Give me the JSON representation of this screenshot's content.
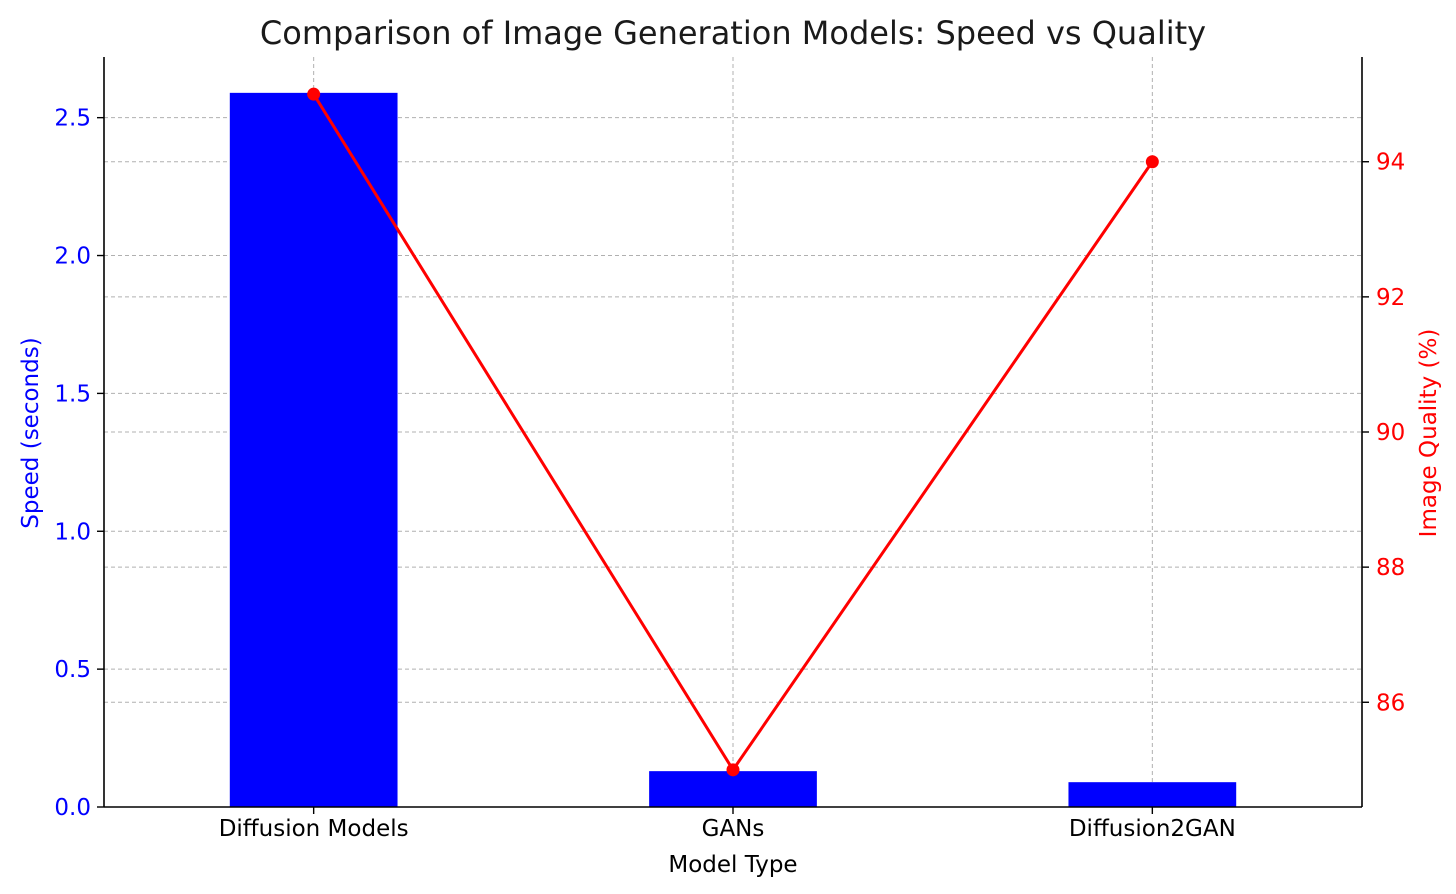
{
  "chart_data": {
    "type": "bar",
    "title": "Comparison of Image Generation Models: Speed vs Quality",
    "xlabel": "Model Type",
    "categories": [
      "Diffusion Models",
      "GANs",
      "Diffusion2GAN"
    ],
    "bar_series": {
      "values": [
        2.59,
        0.13,
        0.09
      ],
      "color": "#0000ff",
      "axis": "left"
    },
    "line_series": {
      "values": [
        95,
        85,
        94
      ],
      "color": "#ff0000",
      "axis": "right",
      "marker": "circle"
    },
    "y_left": {
      "label": "Speed (seconds)",
      "color": "#0000ff",
      "ylim": [
        0,
        2.72
      ],
      "ticks": [
        0.0,
        0.5,
        1.0,
        1.5,
        2.0,
        2.5
      ],
      "tick_labels": [
        "0.0",
        "0.5",
        "1.0",
        "1.5",
        "2.0",
        "2.5"
      ]
    },
    "y_right": {
      "label": "Image Quality (%)",
      "color": "#ff0000",
      "ylim": [
        84.45,
        95.55
      ],
      "ticks": [
        86,
        88,
        90,
        92,
        94
      ],
      "tick_labels": [
        "86",
        "88",
        "90",
        "92",
        "94"
      ]
    },
    "grid": true,
    "legend": "none"
  }
}
